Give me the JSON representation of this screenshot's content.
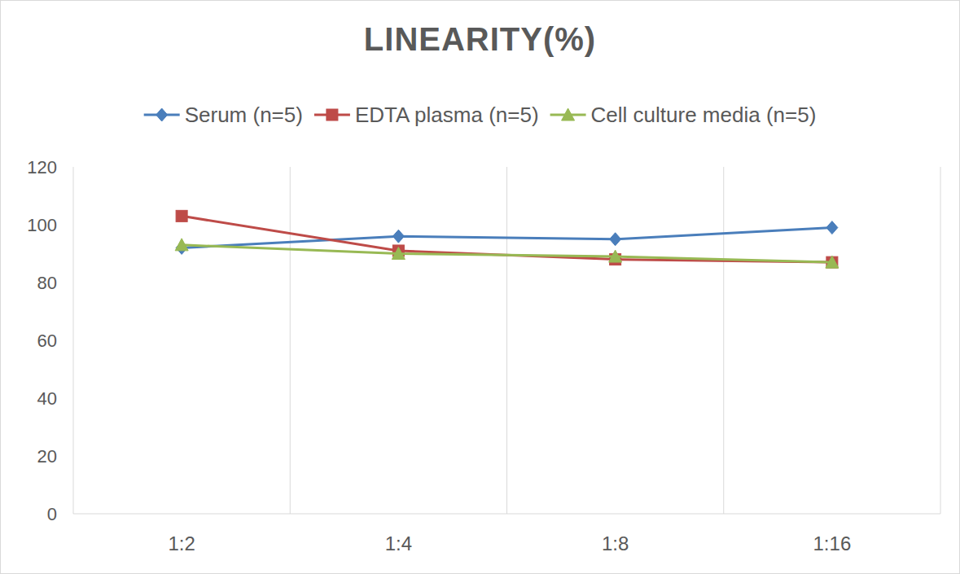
{
  "chart_data": {
    "type": "line",
    "title": "LINEARITY(%)",
    "categories": [
      "1:2",
      "1:4",
      "1:8",
      "1:16"
    ],
    "series": [
      {
        "name": "Serum (n=5)",
        "color": "#4a7ebb",
        "marker": "diamond",
        "values": [
          92,
          96,
          95,
          99
        ]
      },
      {
        "name": "EDTA plasma (n=5)",
        "color": "#be4b48",
        "marker": "square",
        "values": [
          103,
          91,
          88,
          87
        ]
      },
      {
        "name": "Cell culture media (n=5)",
        "color": "#98b954",
        "marker": "triangle",
        "values": [
          93,
          90,
          89,
          87
        ]
      }
    ],
    "ylim": [
      0,
      120
    ],
    "yticks": [
      0,
      20,
      40,
      60,
      80,
      100,
      120
    ],
    "grid": true,
    "legend": "top"
  }
}
